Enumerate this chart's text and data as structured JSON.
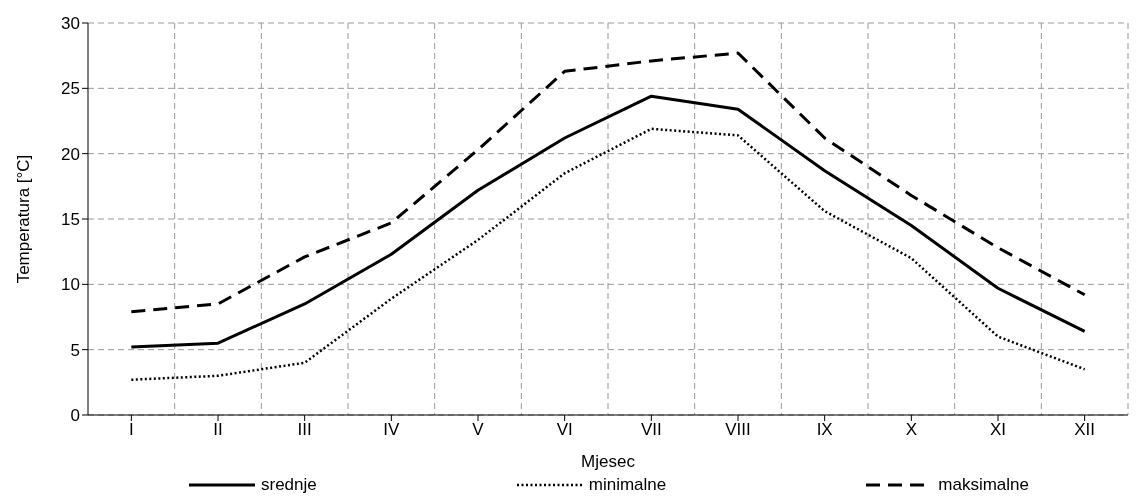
{
  "chart_data": {
    "type": "line",
    "xlabel": "Mjesec",
    "ylabel": "Temperatura [°C]",
    "categories": [
      "I",
      "II",
      "III",
      "IV",
      "V",
      "VI",
      "VII",
      "VIII",
      "IX",
      "X",
      "XI",
      "XII"
    ],
    "series": [
      {
        "name": "srednje",
        "color": "#000000",
        "line_style": "solid",
        "values": [
          5.2,
          5.5,
          8.5,
          12.3,
          17.2,
          21.2,
          24.4,
          23.4,
          18.7,
          14.5,
          9.7,
          6.4
        ]
      },
      {
        "name": "minimalne",
        "color": "#000000",
        "line_style": "dotted",
        "values": [
          2.7,
          3.0,
          4.0,
          8.9,
          13.4,
          18.5,
          21.9,
          21.4,
          15.6,
          12.0,
          6.0,
          3.5
        ]
      },
      {
        "name": "maksimalne",
        "color": "#000000",
        "line_style": "dashed",
        "values": [
          7.9,
          8.5,
          12.1,
          14.7,
          20.3,
          26.3,
          27.1,
          27.7,
          21.2,
          16.8,
          12.8,
          9.2
        ]
      }
    ],
    "ylim": [
      0,
      30
    ],
    "yticks": [
      0,
      5,
      10,
      15,
      20,
      25,
      30
    ],
    "grid": true,
    "legend": "bottom",
    "marker": "none"
  }
}
